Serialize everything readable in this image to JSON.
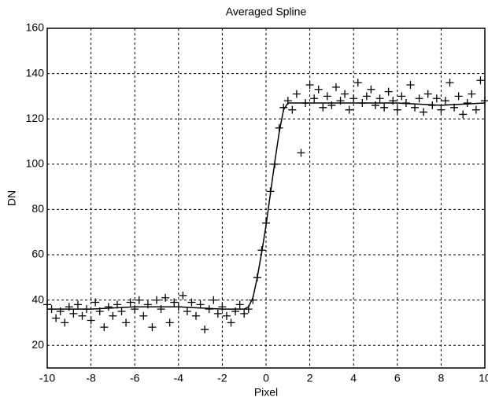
{
  "chart_data": {
    "type": "scatter",
    "title": "Averaged Spline",
    "x_label": "Pixel",
    "y_label": "DN",
    "xlim": [
      -10,
      10
    ],
    "ylim": [
      10,
      160
    ],
    "xticks": [
      -10,
      -8,
      -6,
      -4,
      -2,
      0,
      2,
      4,
      6,
      8,
      10
    ],
    "yticks": [
      20,
      40,
      60,
      80,
      100,
      120,
      140,
      160
    ],
    "grid": true,
    "series": [
      {
        "style": "plus",
        "color": "#000000",
        "x": [
          -10,
          -9.8,
          -9.6,
          -9.4,
          -9.2,
          -9,
          -8.8,
          -8.6,
          -8.4,
          -8.2,
          -8,
          -7.8,
          -7.6,
          -7.4,
          -7.2,
          -7,
          -6.8,
          -6.6,
          -6.4,
          -6.2,
          -6,
          -5.8,
          -5.6,
          -5.4,
          -5.2,
          -5,
          -4.8,
          -4.6,
          -4.4,
          -4.2,
          -4,
          -3.8,
          -3.6,
          -3.4,
          -3.2,
          -3,
          -2.8,
          -2.6,
          -2.4,
          -2.2,
          -2,
          -1.8,
          -1.6,
          -1.4,
          -1.2,
          -1,
          -0.8,
          -0.6,
          -0.4,
          -0.2,
          0,
          0.2,
          0.4,
          0.6,
          0.8,
          1,
          1.2,
          1.4,
          1.6,
          1.8,
          2,
          2.2,
          2.4,
          2.6,
          2.8,
          3,
          3.2,
          3.4,
          3.6,
          3.8,
          4,
          4.2,
          4.4,
          4.6,
          4.8,
          5,
          5.2,
          5.4,
          5.6,
          5.8,
          6,
          6.2,
          6.4,
          6.6,
          6.8,
          7,
          7.2,
          7.4,
          7.6,
          7.8,
          8,
          8.2,
          8.4,
          8.6,
          8.8,
          9,
          9.2,
          9.4,
          9.6,
          9.8,
          10
        ],
        "values": [
          38,
          36,
          32,
          35,
          30,
          37,
          34,
          38,
          33,
          36,
          31,
          39,
          35,
          28,
          37,
          33,
          38,
          35,
          30,
          39,
          36,
          40,
          33,
          38,
          28,
          40,
          36,
          41,
          30,
          39,
          37,
          42,
          35,
          39,
          33,
          38,
          27,
          36,
          40,
          34,
          37,
          33,
          30,
          35,
          38,
          34,
          36,
          40,
          50,
          62,
          74,
          88,
          100,
          116,
          125,
          128,
          124,
          131,
          105,
          127,
          135,
          129,
          133,
          125,
          130,
          126,
          134,
          128,
          131,
          124,
          129,
          136,
          127,
          130,
          133,
          126,
          129,
          125,
          132,
          128,
          124,
          130,
          127,
          135,
          125,
          129,
          123,
          131,
          126,
          129,
          124,
          128,
          136,
          125,
          130,
          122,
          127,
          131,
          124,
          137,
          128
        ]
      },
      {
        "style": "line",
        "color": "#000000",
        "x": [
          -10,
          -8,
          -6,
          -4,
          -2,
          -1,
          -0.8,
          -0.6,
          -0.4,
          -0.2,
          0,
          0.2,
          0.4,
          0.6,
          0.8,
          1,
          1.5,
          2,
          4,
          6,
          8,
          10
        ],
        "values": [
          36,
          36,
          37,
          37,
          36,
          36,
          37,
          41,
          50,
          61,
          73,
          87,
          101,
          114,
          124,
          127,
          127,
          127,
          127,
          127,
          126,
          127
        ]
      }
    ]
  }
}
